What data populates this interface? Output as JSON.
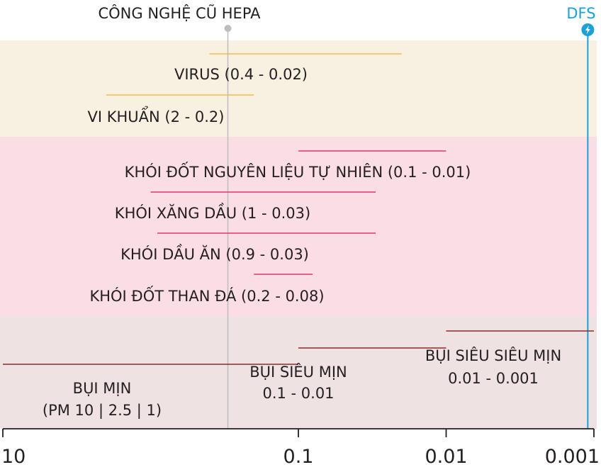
{
  "chart_data": {
    "type": "range",
    "x_scale": "log",
    "x_reversed": true,
    "x_unit_note": "",
    "xlim": [
      10,
      0.001
    ],
    "tick_labels": [
      "10",
      "0.1",
      "0.01",
      "0.001"
    ],
    "tick_values": [
      10,
      0.1,
      0.01,
      0.001
    ],
    "colors": {
      "band_bio": "#f8f1e1",
      "band_smoke": "#fbdde6",
      "band_dust": "#efe2e3",
      "line_bio": "#f2b94a",
      "line_smoke": "#e2376e",
      "line_dust": "#8c2b2b",
      "hepa": "#bdbdbd",
      "dfs": "#1ba0d8",
      "axis": "#231f20"
    },
    "bands": [
      {
        "id": "bio",
        "from": 10,
        "to": 0.001
      },
      {
        "id": "smoke",
        "from": 10,
        "to": 0.001
      },
      {
        "id": "dust",
        "from": 10,
        "to": 0.001
      }
    ],
    "series": [
      {
        "name": "VIRUS (0.4 - 0.02)",
        "band": "bio",
        "from": 0.4,
        "to": 0.02
      },
      {
        "name": "VI KHUẨN (2 - 0.2)",
        "band": "bio",
        "from": 2,
        "to": 0.2
      },
      {
        "name": "KHÓI ĐỐT NGUYÊN LIỆU TỰ NHIÊN (0.1 - 0.01)",
        "band": "smoke",
        "from": 0.1,
        "to": 0.01
      },
      {
        "name": "KHÓI XĂNG DẦU (1 - 0.03)",
        "band": "smoke",
        "from": 1,
        "to": 0.03
      },
      {
        "name": "KHÓI DẦU ĂN (0.9 - 0.03)",
        "band": "smoke",
        "from": 0.9,
        "to": 0.03
      },
      {
        "name": "KHÓI ĐỐT THAN ĐÁ (0.2 - 0.08)",
        "band": "smoke",
        "from": 0.2,
        "to": 0.08
      },
      {
        "name": "BỤI MỊN",
        "name_line2": "(PM 10 | 2.5 | 1)",
        "band": "dust",
        "from": 10,
        "to": 0.1
      },
      {
        "name": "BỤI SIÊU MỊN",
        "name_line2": "0.1 - 0.01",
        "band": "dust",
        "from": 0.1,
        "to": 0.01
      },
      {
        "name": "BỤI SIÊU SIÊU MỊN",
        "name_line2": "0.01 - 0.001",
        "band": "dust",
        "from": 0.01,
        "to": 0.001
      }
    ],
    "markers": [
      {
        "name": "CÔNG NGHỆ CŨ HEPA",
        "value": 0.3,
        "style": "hepa"
      },
      {
        "name": "DFS",
        "value": 0.0011,
        "style": "dfs"
      }
    ]
  }
}
